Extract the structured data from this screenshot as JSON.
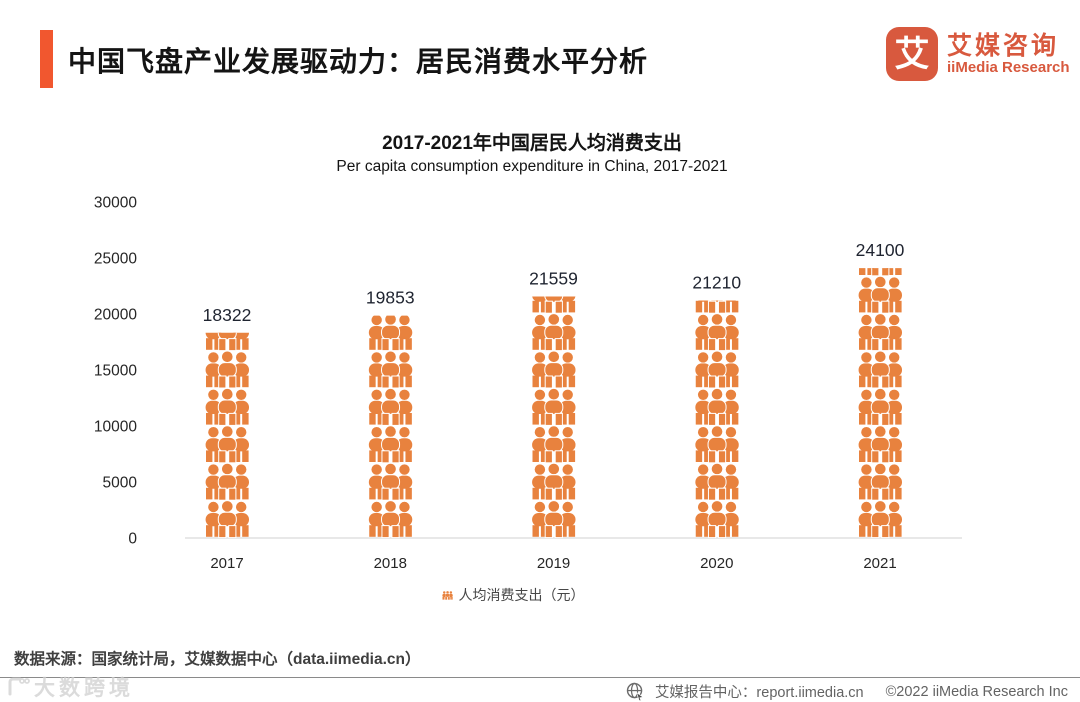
{
  "header": {
    "title": "中国飞盘产业发展驱动力：居民消费水平分析",
    "logo": {
      "glyph": "艾",
      "cn": "艾媒咨询",
      "en": "iiMedia Research"
    }
  },
  "chart_data": {
    "type": "bar",
    "variant": "pictogram-people-stack",
    "title": "2017-2021年中国居民人均消费支出",
    "subtitle": "Per capita consumption expenditure in China, 2017-2021",
    "categories": [
      "2017",
      "2018",
      "2019",
      "2020",
      "2021"
    ],
    "values": [
      18322,
      19853,
      21559,
      21210,
      24100
    ],
    "ylim": [
      0,
      30000
    ],
    "ytick_step": 5000,
    "grid": false,
    "legend": {
      "label": "人均消费支出（元）",
      "position": "bottom"
    },
    "colors": {
      "bar": "#E8823E",
      "value_label": "#1F2430",
      "axis_text": "#262626",
      "baseline": "#D9D9D9"
    }
  },
  "footer": {
    "source": "数据来源：国家统计局，艾媒数据中心（data.iimedia.cn）",
    "report_center": "艾媒报告中心：report.iimedia.cn",
    "copyright": "©2022  iiMedia Research  Inc",
    "watermark": "大数跨境"
  },
  "colors": {
    "accent_bar": "#F1572F",
    "logo": "#D8593E"
  }
}
